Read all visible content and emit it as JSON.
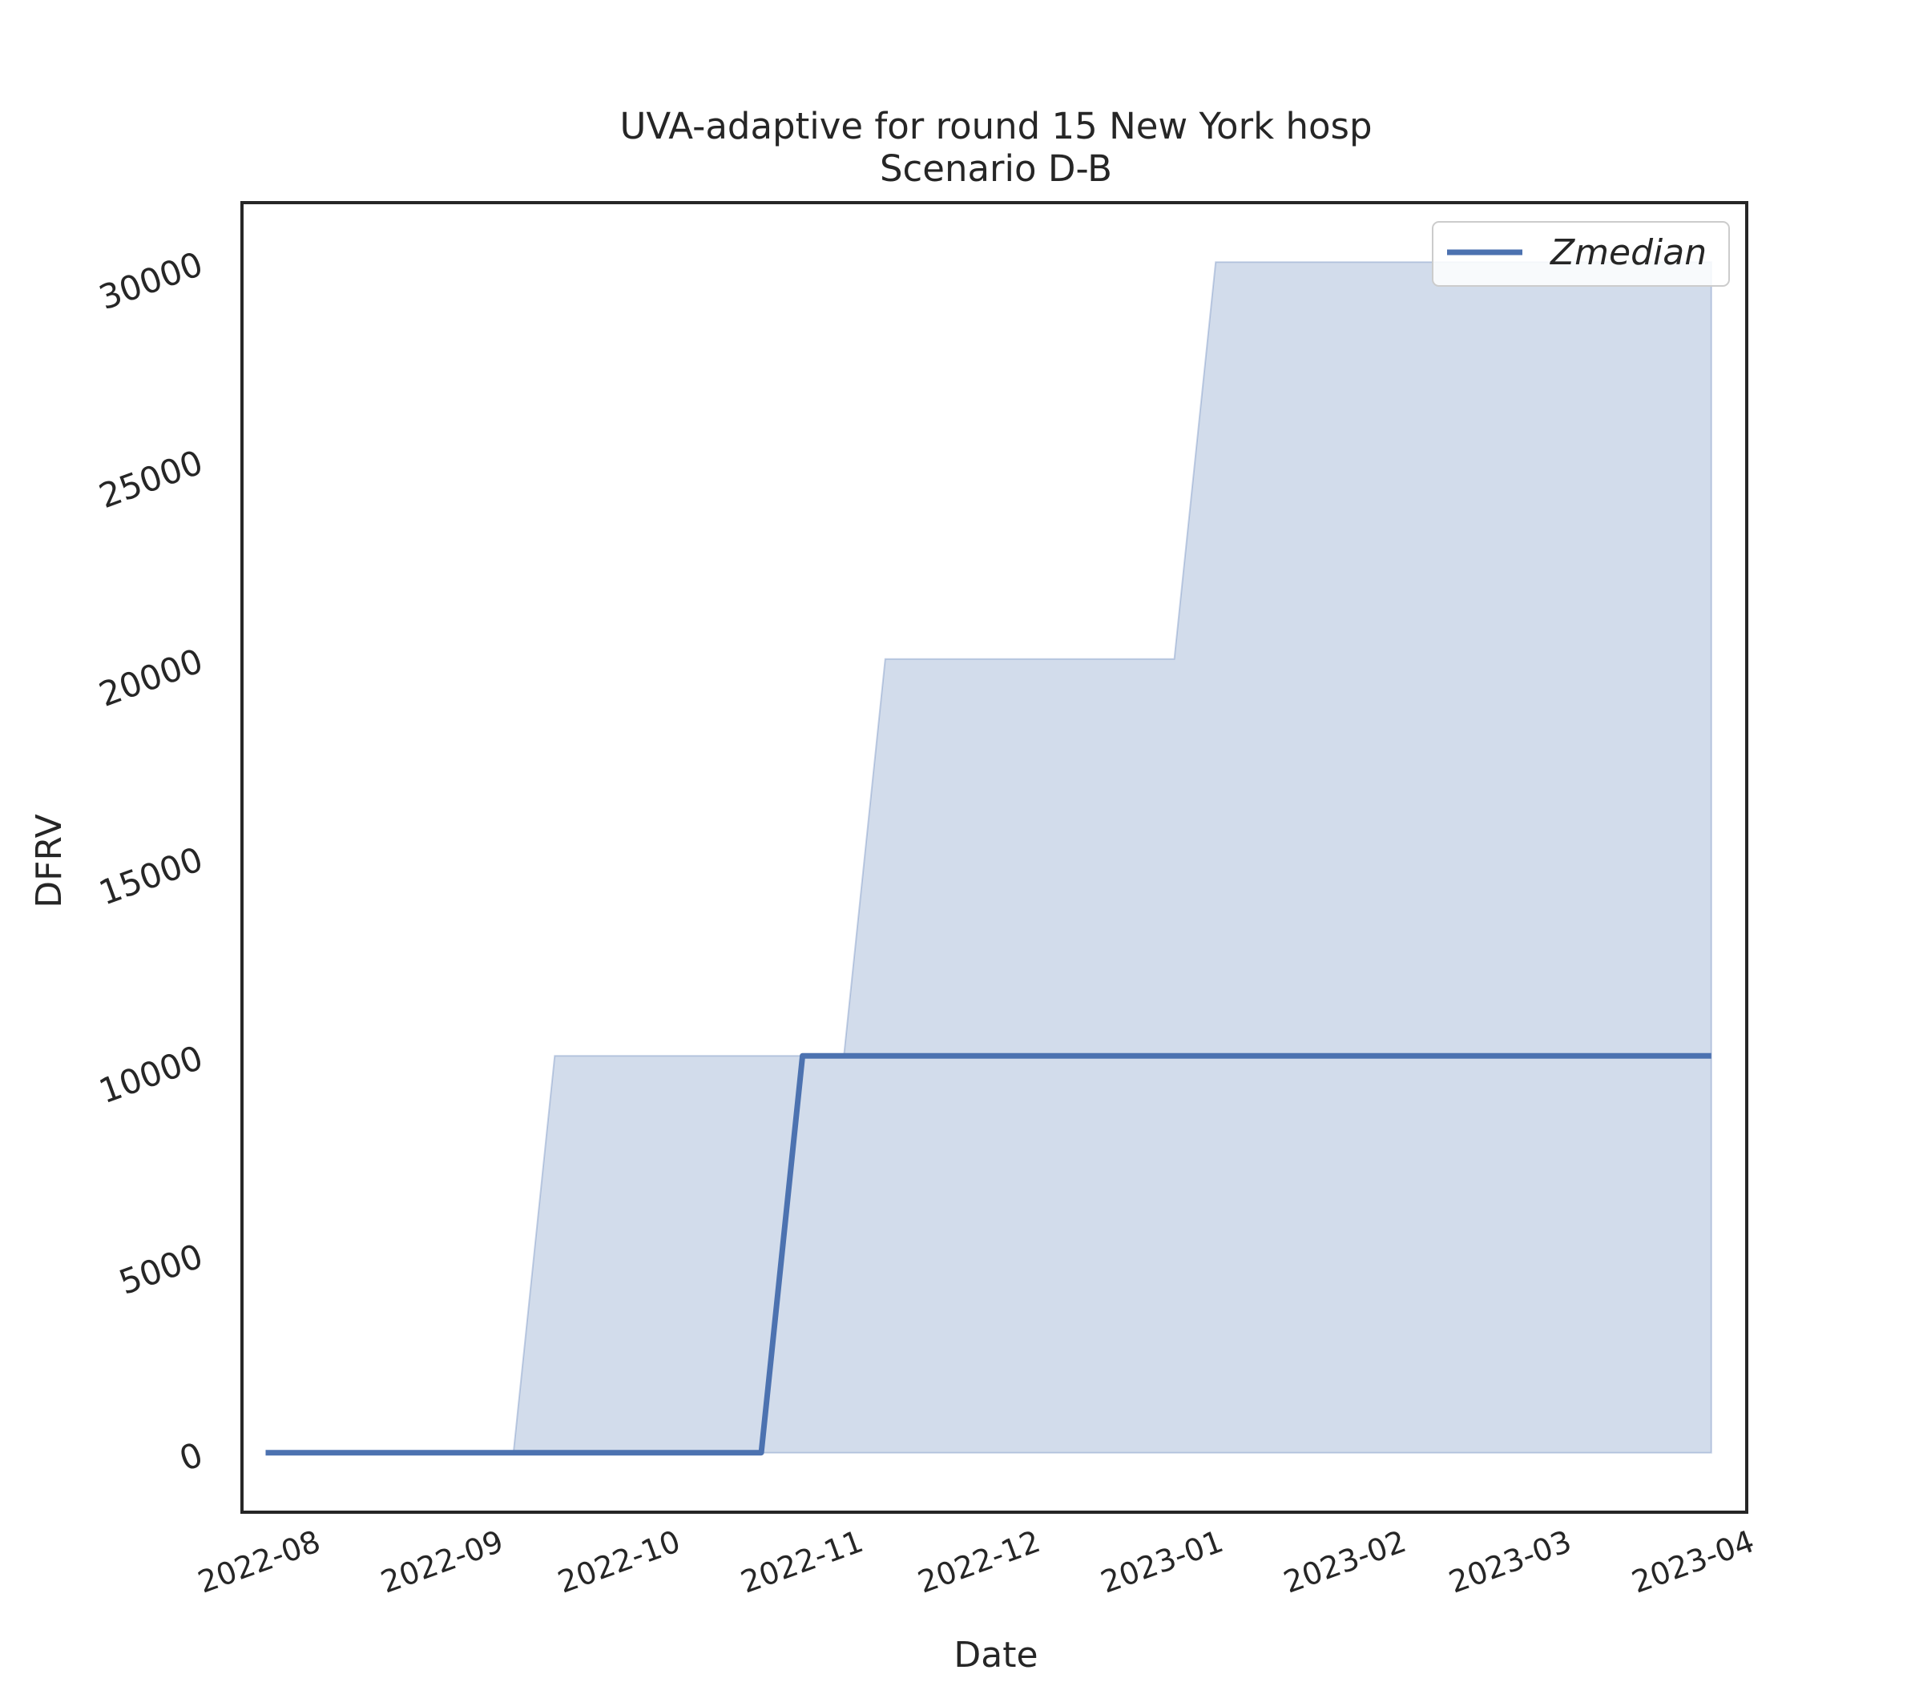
{
  "chart_data": {
    "type": "area",
    "title": "UVA-adaptive for round 15 New York hosp",
    "subtitle": "Scenario D-B",
    "xlabel": "Date",
    "ylabel": "DFRV",
    "x_tick_labels": [
      "2022-08",
      "2022-09",
      "2022-10",
      "2022-11",
      "2022-12",
      "2023-01",
      "2023-02",
      "2023-03",
      "2023-04"
    ],
    "x_tick_dates": [
      "2022-08-01",
      "2022-09-01",
      "2022-10-01",
      "2022-11-01",
      "2022-12-01",
      "2023-01-01",
      "2023-02-01",
      "2023-03-01",
      "2023-04-01"
    ],
    "xlim": [
      "2022-07-20",
      "2023-04-01"
    ],
    "y_ticks": [
      0,
      5000,
      10000,
      15000,
      20000,
      25000,
      30000
    ],
    "ylim": [
      -1500,
      31500
    ],
    "grid": false,
    "legend": {
      "position": "top-right",
      "entries": [
        "Zmedian"
      ]
    },
    "colors": {
      "line": "#4c72b0",
      "band_fill": "#4c72b0",
      "axes": "#262626"
    },
    "series": [
      {
        "name": "Zmedian",
        "kind": "line",
        "points": [
          {
            "x": "2022-07-24",
            "y": 0
          },
          {
            "x": "2022-10-16",
            "y": 0
          },
          {
            "x": "2022-10-23",
            "y": 10000
          },
          {
            "x": "2023-03-26",
            "y": 10000
          }
        ]
      },
      {
        "kind": "band",
        "upper": [
          {
            "x": "2022-09-04",
            "y": 0
          },
          {
            "x": "2022-09-11",
            "y": 10000
          },
          {
            "x": "2022-10-30",
            "y": 10000
          },
          {
            "x": "2022-11-06",
            "y": 20000
          },
          {
            "x": "2022-12-25",
            "y": 20000
          },
          {
            "x": "2023-01-01",
            "y": 30000
          },
          {
            "x": "2023-03-26",
            "y": 30000
          }
        ],
        "lower": [
          {
            "x": "2022-09-04",
            "y": 0
          },
          {
            "x": "2023-03-26",
            "y": 0
          }
        ]
      }
    ]
  }
}
